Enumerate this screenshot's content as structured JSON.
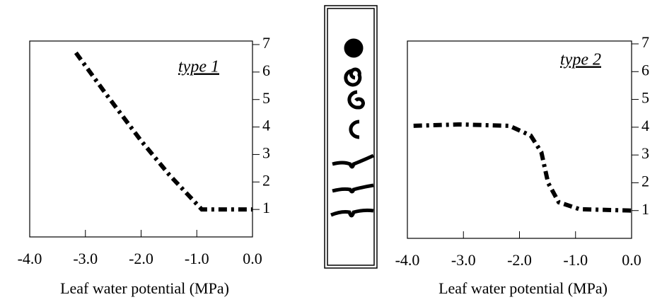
{
  "chart_data": [
    {
      "type": "line",
      "annotation": "type 1",
      "x_label": "Leaf water potential (MPa)",
      "x": [
        -3.17,
        -2.63,
        -2.0,
        -1.49,
        -0.91,
        0.0
      ],
      "series": [
        {
          "values": [
            6.7,
            5.2,
            3.5,
            2.25,
            1.0,
            1.0
          ],
          "color": "#000000"
        }
      ],
      "xlim": [
        -4,
        0
      ],
      "xticks": [
        {
          "value": -4,
          "label": "-4.0"
        },
        {
          "value": -3,
          "label": "-3.0"
        },
        {
          "value": -2,
          "label": "-2.0"
        },
        {
          "value": -1,
          "label": "-1.0"
        },
        {
          "value": 0,
          "label": "0.0"
        }
      ],
      "ylim": [
        0,
        7
      ],
      "yticks": [
        1,
        2,
        3,
        4,
        5,
        6,
        7
      ]
    },
    {
      "type": "line",
      "annotation": "type 2",
      "x_label": "Leaf water potential (MPa)",
      "x": [
        -3.89,
        -3.07,
        -2.18,
        -1.8,
        -1.61,
        -1.49,
        -1.3,
        -0.93,
        0.0
      ],
      "series": [
        {
          "values": [
            4.05,
            4.1,
            4.05,
            3.7,
            3.1,
            2.0,
            1.3,
            1.05,
            1.0
          ],
          "color": "#000000"
        }
      ],
      "xlim": [
        -4,
        0
      ],
      "xticks": [
        {
          "value": -4,
          "label": "-4.0"
        },
        {
          "value": -3,
          "label": "-3.0"
        },
        {
          "value": -2,
          "label": "-2.0"
        },
        {
          "value": -1,
          "label": "-1.0"
        },
        {
          "value": 0,
          "label": "0.0"
        }
      ],
      "ylim": [
        0,
        7
      ],
      "yticks": [
        1,
        2,
        3,
        4,
        5,
        6,
        7
      ]
    }
  ]
}
